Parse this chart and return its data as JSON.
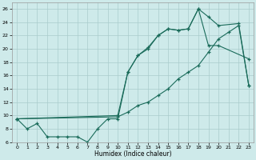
{
  "xlabel": "Humidex (Indice chaleur)",
  "xlim": [
    -0.5,
    23.5
  ],
  "ylim": [
    6,
    27
  ],
  "yticks": [
    6,
    8,
    10,
    12,
    14,
    16,
    18,
    20,
    22,
    24,
    26
  ],
  "xticks": [
    0,
    1,
    2,
    3,
    4,
    5,
    6,
    7,
    8,
    9,
    10,
    11,
    12,
    13,
    14,
    15,
    16,
    17,
    18,
    19,
    20,
    21,
    22,
    23
  ],
  "background_color": "#ceeaea",
  "grid_color": "#aacccc",
  "line_color": "#1a6b5a",
  "line1_x": [
    0,
    1,
    2,
    3,
    4,
    5,
    6,
    7,
    8,
    9,
    10,
    11,
    12,
    13,
    14,
    15,
    16,
    17,
    18,
    19,
    20,
    23
  ],
  "line1_y": [
    9.5,
    8.0,
    8.8,
    6.8,
    6.8,
    6.8,
    6.8,
    6.0,
    8.0,
    9.5,
    9.5,
    16.5,
    19.0,
    20.0,
    22.0,
    23.0,
    22.8,
    23.0,
    26.0,
    20.5,
    20.5,
    18.5
  ],
  "line2_x": [
    0,
    10,
    11,
    12,
    13,
    14,
    15,
    16,
    17,
    18,
    19,
    20,
    22,
    23
  ],
  "line2_y": [
    9.5,
    10.0,
    16.5,
    19.0,
    20.2,
    22.0,
    23.0,
    22.8,
    23.0,
    26.0,
    24.8,
    23.5,
    23.8,
    14.5
  ],
  "line3_x": [
    0,
    10,
    11,
    12,
    13,
    14,
    15,
    16,
    17,
    18,
    19,
    20,
    21,
    22,
    23
  ],
  "line3_y": [
    9.5,
    9.8,
    10.5,
    11.5,
    12.0,
    13.0,
    14.0,
    15.5,
    16.5,
    17.5,
    19.5,
    21.5,
    22.5,
    23.5,
    14.5
  ]
}
